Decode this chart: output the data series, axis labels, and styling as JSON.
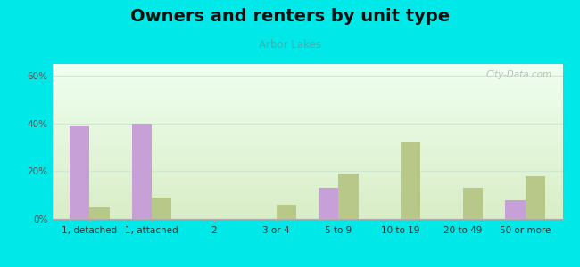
{
  "title": "Owners and renters by unit type",
  "subtitle": "Arbor Lakes",
  "categories": [
    "1, detached",
    "1, attached",
    "2",
    "3 or 4",
    "5 to 9",
    "10 to 19",
    "20 to 49",
    "50 or more"
  ],
  "owner_values": [
    39,
    40,
    0,
    0,
    13,
    0,
    0,
    8
  ],
  "renter_values": [
    5,
    9,
    0,
    6,
    19,
    32,
    13,
    18
  ],
  "owner_color": "#c8a0d8",
  "renter_color": "#b8c888",
  "background_color": "#00e8e8",
  "plot_bg_top": "#f0fef0",
  "plot_bg_bottom": "#d8ecc8",
  "ylim": [
    0,
    65
  ],
  "yticks": [
    0,
    20,
    40,
    60
  ],
  "ytick_labels": [
    "0%",
    "20%",
    "40%",
    "60%"
  ],
  "bar_width": 0.32,
  "title_fontsize": 14,
  "subtitle_fontsize": 8.5,
  "tick_fontsize": 7.5,
  "watermark": "City-Data.com",
  "subtitle_color": "#40b0b0",
  "title_color": "#111111",
  "grid_color": "#d0e8d0",
  "spine_color": "#aaaaaa"
}
